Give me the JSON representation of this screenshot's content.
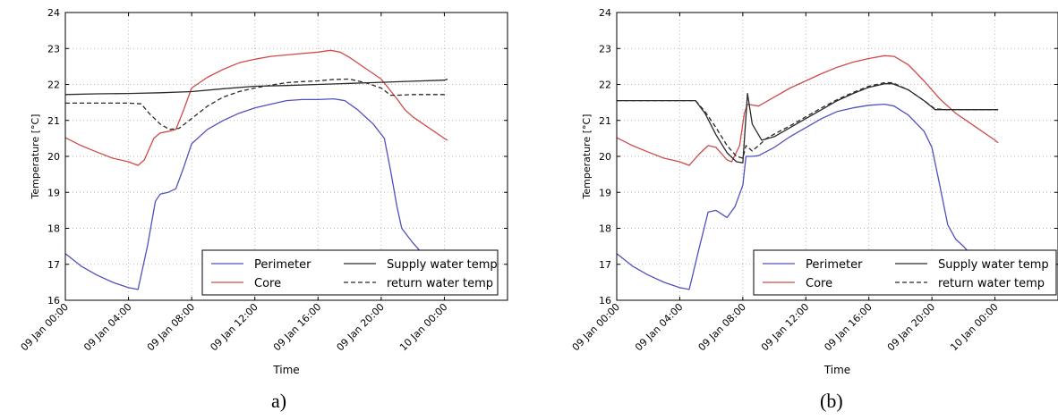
{
  "captions": [
    "a)",
    "(b)"
  ],
  "chart_data": [
    {
      "type": "line",
      "ylabel": "Temperature [°C]",
      "xlabel": "Time",
      "ylim": [
        16,
        24
      ],
      "yticks": [
        16,
        17,
        18,
        19,
        20,
        21,
        22,
        23,
        24
      ],
      "xlim_hours": [
        0,
        28
      ],
      "xticks": [
        {
          "h": 0,
          "label": "09 Jan 00:00"
        },
        {
          "h": 4,
          "label": "09 Jan 04:00"
        },
        {
          "h": 8,
          "label": "09 Jan 08:00"
        },
        {
          "h": 12,
          "label": "09 Jan 12:00"
        },
        {
          "h": 16,
          "label": "09 Jan 16:00"
        },
        {
          "h": 20,
          "label": "09 Jan 20:00"
        },
        {
          "h": 24,
          "label": "10 Jan 00:00"
        }
      ],
      "grid": true,
      "legend": "bottom-right",
      "series": [
        {
          "name": "Perimeter",
          "color": "#5050bf",
          "dash": "solid",
          "points": [
            [
              0,
              17.3
            ],
            [
              1,
              16.95
            ],
            [
              2,
              16.7
            ],
            [
              3,
              16.5
            ],
            [
              4,
              16.35
            ],
            [
              4.6,
              16.3
            ],
            [
              5.2,
              17.5
            ],
            [
              5.7,
              18.75
            ],
            [
              6,
              18.95
            ],
            [
              6.5,
              19.0
            ],
            [
              7,
              19.1
            ],
            [
              7.5,
              19.7
            ],
            [
              8,
              20.35
            ],
            [
              9,
              20.75
            ],
            [
              10,
              21.0
            ],
            [
              11,
              21.2
            ],
            [
              12,
              21.35
            ],
            [
              13,
              21.45
            ],
            [
              14,
              21.55
            ],
            [
              15,
              21.58
            ],
            [
              16,
              21.58
            ],
            [
              17,
              21.6
            ],
            [
              17.7,
              21.55
            ],
            [
              18.5,
              21.3
            ],
            [
              19.5,
              20.9
            ],
            [
              20.2,
              20.5
            ],
            [
              20.6,
              19.6
            ],
            [
              21,
              18.6
            ],
            [
              21.3,
              18.0
            ],
            [
              22,
              17.6
            ],
            [
              23,
              17.1
            ],
            [
              24,
              16.75
            ],
            [
              24.2,
              16.65
            ]
          ]
        },
        {
          "name": "Core",
          "color": "#d04a4a",
          "dash": "solid",
          "points": [
            [
              0,
              20.52
            ],
            [
              1,
              20.3
            ],
            [
              2,
              20.12
            ],
            [
              3,
              19.95
            ],
            [
              4,
              19.85
            ],
            [
              4.6,
              19.75
            ],
            [
              5,
              19.9
            ],
            [
              5.6,
              20.5
            ],
            [
              6,
              20.65
            ],
            [
              6.6,
              20.7
            ],
            [
              7,
              20.75
            ],
            [
              7.5,
              21.3
            ],
            [
              8,
              21.9
            ],
            [
              9,
              22.2
            ],
            [
              10,
              22.42
            ],
            [
              11,
              22.6
            ],
            [
              12,
              22.7
            ],
            [
              13,
              22.78
            ],
            [
              14,
              22.82
            ],
            [
              15,
              22.86
            ],
            [
              16,
              22.9
            ],
            [
              16.8,
              22.95
            ],
            [
              17.4,
              22.9
            ],
            [
              18,
              22.75
            ],
            [
              19,
              22.45
            ],
            [
              20,
              22.15
            ],
            [
              21,
              21.6
            ],
            [
              21.5,
              21.3
            ],
            [
              22,
              21.1
            ],
            [
              23,
              20.8
            ],
            [
              24,
              20.5
            ],
            [
              24.2,
              20.45
            ]
          ]
        },
        {
          "name": "Supply water temp",
          "color": "#2a2a2a",
          "dash": "solid",
          "points": [
            [
              0,
              21.72
            ],
            [
              2,
              21.74
            ],
            [
              4,
              21.75
            ],
            [
              6,
              21.77
            ],
            [
              8,
              21.8
            ],
            [
              10,
              21.88
            ],
            [
              12,
              21.95
            ],
            [
              14,
              21.97
            ],
            [
              16,
              22.0
            ],
            [
              18,
              22.03
            ],
            [
              20,
              22.06
            ],
            [
              22,
              22.09
            ],
            [
              24,
              22.12
            ],
            [
              24.2,
              22.15
            ]
          ]
        },
        {
          "name": "return water temp",
          "color": "#2a2a2a",
          "dash": "dashed",
          "points": [
            [
              0,
              21.48
            ],
            [
              2,
              21.48
            ],
            [
              4,
              21.48
            ],
            [
              4.8,
              21.46
            ],
            [
              5.3,
              21.2
            ],
            [
              6,
              20.9
            ],
            [
              6.6,
              20.75
            ],
            [
              7.2,
              20.78
            ],
            [
              8,
              21.05
            ],
            [
              9,
              21.4
            ],
            [
              10,
              21.65
            ],
            [
              11,
              21.8
            ],
            [
              12,
              21.9
            ],
            [
              13,
              21.98
            ],
            [
              14,
              22.05
            ],
            [
              15,
              22.08
            ],
            [
              16,
              22.1
            ],
            [
              17,
              22.14
            ],
            [
              18,
              22.15
            ],
            [
              19,
              22.05
            ],
            [
              20,
              21.9
            ],
            [
              20.6,
              21.7
            ],
            [
              21,
              21.7
            ],
            [
              22,
              21.72
            ],
            [
              24.2,
              21.72
            ]
          ]
        }
      ]
    },
    {
      "type": "line",
      "ylabel": "Temperature [°C]",
      "xlabel": "Time",
      "ylim": [
        16,
        24
      ],
      "yticks": [
        16,
        17,
        18,
        19,
        20,
        21,
        22,
        23,
        24
      ],
      "xlim_hours": [
        0,
        28
      ],
      "xticks": [
        {
          "h": 0,
          "label": "09 Jan 00:00"
        },
        {
          "h": 4,
          "label": "09 Jan 04:00"
        },
        {
          "h": 8,
          "label": "09 Jan 08:00"
        },
        {
          "h": 12,
          "label": "09 Jan 12:00"
        },
        {
          "h": 16,
          "label": "09 Jan 16:00"
        },
        {
          "h": 20,
          "label": "09 Jan 20:00"
        },
        {
          "h": 24,
          "label": "10 Jan 00:00"
        }
      ],
      "grid": true,
      "legend": "bottom-right",
      "series": [
        {
          "name": "Perimeter",
          "color": "#5050bf",
          "dash": "solid",
          "points": [
            [
              0,
              17.3
            ],
            [
              1,
              16.95
            ],
            [
              2,
              16.7
            ],
            [
              3,
              16.5
            ],
            [
              4,
              16.35
            ],
            [
              4.6,
              16.3
            ],
            [
              5.2,
              17.4
            ],
            [
              5.8,
              18.45
            ],
            [
              6.3,
              18.5
            ],
            [
              7,
              18.3
            ],
            [
              7.5,
              18.6
            ],
            [
              8,
              19.2
            ],
            [
              8.2,
              20.0
            ],
            [
              8.6,
              20.0
            ],
            [
              9,
              20.02
            ],
            [
              10,
              20.25
            ],
            [
              11,
              20.55
            ],
            [
              12,
              20.8
            ],
            [
              13,
              21.05
            ],
            [
              14,
              21.25
            ],
            [
              15,
              21.35
            ],
            [
              16,
              21.42
            ],
            [
              17,
              21.45
            ],
            [
              17.6,
              21.4
            ],
            [
              18.5,
              21.15
            ],
            [
              19.5,
              20.7
            ],
            [
              20,
              20.25
            ],
            [
              20.5,
              19.2
            ],
            [
              21,
              18.1
            ],
            [
              21.5,
              17.7
            ],
            [
              22,
              17.5
            ],
            [
              23,
              17.0
            ],
            [
              24,
              16.75
            ],
            [
              24.2,
              16.65
            ]
          ]
        },
        {
          "name": "Core",
          "color": "#d04a4a",
          "dash": "solid",
          "points": [
            [
              0,
              20.52
            ],
            [
              1,
              20.3
            ],
            [
              2,
              20.12
            ],
            [
              3,
              19.95
            ],
            [
              4,
              19.85
            ],
            [
              4.6,
              19.75
            ],
            [
              5.2,
              20.05
            ],
            [
              5.8,
              20.3
            ],
            [
              6.3,
              20.25
            ],
            [
              7,
              19.9
            ],
            [
              7.3,
              19.85
            ],
            [
              7.8,
              20.3
            ],
            [
              8.1,
              21.2
            ],
            [
              8.3,
              21.45
            ],
            [
              9,
              21.4
            ],
            [
              10,
              21.65
            ],
            [
              11,
              21.9
            ],
            [
              12,
              22.1
            ],
            [
              13,
              22.3
            ],
            [
              14,
              22.48
            ],
            [
              15,
              22.62
            ],
            [
              16,
              22.72
            ],
            [
              17,
              22.8
            ],
            [
              17.6,
              22.78
            ],
            [
              18.5,
              22.55
            ],
            [
              19.5,
              22.1
            ],
            [
              20.5,
              21.6
            ],
            [
              21.5,
              21.2
            ],
            [
              22,
              21.05
            ],
            [
              23,
              20.75
            ],
            [
              24,
              20.45
            ],
            [
              24.2,
              20.38
            ]
          ]
        },
        {
          "name": "Supply water temp",
          "color": "#2a2a2a",
          "dash": "solid",
          "points": [
            [
              0,
              21.55
            ],
            [
              2,
              21.55
            ],
            [
              4,
              21.55
            ],
            [
              5,
              21.55
            ],
            [
              5.6,
              21.2
            ],
            [
              6.3,
              20.6
            ],
            [
              7,
              20.1
            ],
            [
              7.6,
              19.85
            ],
            [
              8,
              19.82
            ],
            [
              8.3,
              21.75
            ],
            [
              8.6,
              20.9
            ],
            [
              9.2,
              20.45
            ],
            [
              10,
              20.55
            ],
            [
              11,
              20.8
            ],
            [
              12,
              21.05
            ],
            [
              13,
              21.3
            ],
            [
              14,
              21.55
            ],
            [
              15,
              21.75
            ],
            [
              16,
              21.92
            ],
            [
              17,
              22.02
            ],
            [
              17.5,
              22.02
            ],
            [
              18.5,
              21.85
            ],
            [
              19.5,
              21.55
            ],
            [
              20.2,
              21.3
            ],
            [
              21,
              21.3
            ],
            [
              24.2,
              21.3
            ]
          ]
        },
        {
          "name": "return water temp",
          "color": "#2a2a2a",
          "dash": "dashed",
          "points": [
            [
              0,
              21.55
            ],
            [
              2,
              21.55
            ],
            [
              4,
              21.55
            ],
            [
              5,
              21.55
            ],
            [
              5.6,
              21.25
            ],
            [
              6.3,
              20.8
            ],
            [
              7,
              20.3
            ],
            [
              7.6,
              20.0
            ],
            [
              8,
              19.95
            ],
            [
              8.2,
              20.3
            ],
            [
              8.6,
              20.15
            ],
            [
              9,
              20.3
            ],
            [
              9.5,
              20.5
            ],
            [
              10,
              20.62
            ],
            [
              11,
              20.85
            ],
            [
              12,
              21.1
            ],
            [
              13,
              21.35
            ],
            [
              14,
              21.58
            ],
            [
              15,
              21.78
            ],
            [
              16,
              21.95
            ],
            [
              17,
              22.05
            ],
            [
              17.5,
              22.05
            ],
            [
              18.5,
              21.85
            ],
            [
              19.5,
              21.55
            ],
            [
              20.2,
              21.32
            ],
            [
              21,
              21.3
            ],
            [
              24.2,
              21.3
            ]
          ]
        }
      ]
    }
  ]
}
